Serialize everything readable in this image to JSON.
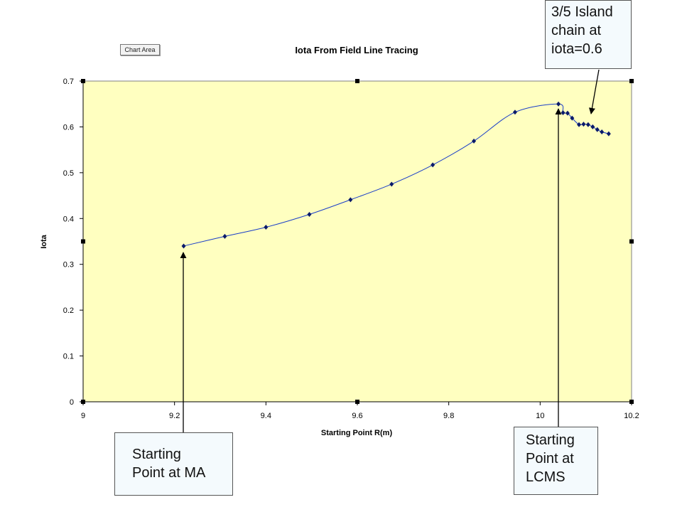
{
  "chart_area_tag": "Chart Area",
  "callouts": {
    "island": "3/5 Island\nchain at\niota=0.6",
    "lcms": "Starting\nPoint at\nLCMS",
    "ma": "Starting\nPoint at MA"
  },
  "colors": {
    "plot_bg": "#ffffc0",
    "line": "#1a3ec8",
    "marker": "#0a1a6a"
  },
  "chart_data": {
    "type": "scatter",
    "title": "Iota From Field Line Tracing",
    "xlabel": "Starting Point R(m)",
    "ylabel": "Iota",
    "xlim": [
      9,
      10.2
    ],
    "ylim": [
      0,
      0.7
    ],
    "x_ticks": [
      9,
      9.2,
      9.4,
      9.6,
      9.8,
      10,
      10.2
    ],
    "x_tick_labels": [
      "9",
      "9.2",
      "9.4",
      "9.6",
      "9.8",
      "10",
      "10.2"
    ],
    "y_ticks": [
      0,
      0.1,
      0.2,
      0.3,
      0.4,
      0.5,
      0.6,
      0.7
    ],
    "y_tick_labels": [
      "0",
      "0.1",
      "0.2",
      "0.3",
      "0.4",
      "0.5",
      "0.6",
      "0.7"
    ],
    "grid": false,
    "legend": "none",
    "series": [
      {
        "x": [
          9.22,
          9.31,
          9.4,
          9.495,
          9.585,
          9.675,
          9.765,
          9.855,
          9.945,
          10.04,
          10.05,
          10.06,
          10.07,
          10.085,
          10.095,
          10.105,
          10.115,
          10.125,
          10.135,
          10.15
        ],
        "y": [
          0.34,
          0.361,
          0.381,
          0.409,
          0.441,
          0.475,
          0.517,
          0.569,
          0.632,
          0.65,
          0.631,
          0.63,
          0.619,
          0.605,
          0.606,
          0.605,
          0.6,
          0.594,
          0.589,
          0.585
        ]
      }
    ]
  }
}
